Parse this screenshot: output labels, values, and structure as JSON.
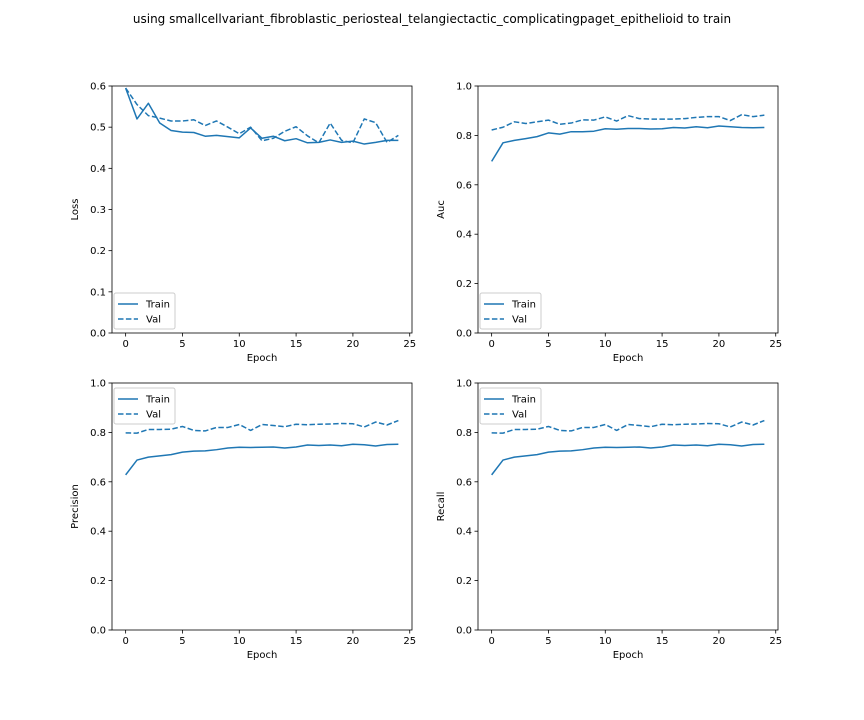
{
  "figure": {
    "title": "using smallcellvariant_fibroblastic_periosteal_telangiectactic_complicatingpaget_epithelioid to train"
  },
  "colors": {
    "series": "#1f77b4"
  },
  "chart_data": [
    {
      "type": "line",
      "ylabel": "Loss",
      "xlabel": "Epoch",
      "xlim": [
        -1.2,
        25.2
      ],
      "ylim": [
        0,
        0.6
      ],
      "xticks": [
        "0",
        "5",
        "10",
        "15",
        "20",
        "25"
      ],
      "yticks": [
        "0.0",
        "0.1",
        "0.2",
        "0.3",
        "0.4",
        "0.5",
        "0.6"
      ],
      "legend_position": "lower-left",
      "x": [
        0,
        1,
        2,
        3,
        4,
        5,
        6,
        7,
        8,
        9,
        10,
        11,
        12,
        13,
        14,
        15,
        16,
        17,
        18,
        19,
        20,
        21,
        22,
        23,
        24
      ],
      "series": [
        {
          "name": "Train",
          "style": "solid",
          "values": [
            0.595,
            0.52,
            0.558,
            0.51,
            0.492,
            0.488,
            0.487,
            0.478,
            0.48,
            0.477,
            0.474,
            0.498,
            0.473,
            0.478,
            0.467,
            0.472,
            0.462,
            0.463,
            0.469,
            0.463,
            0.466,
            0.459,
            0.463,
            0.468,
            0.468
          ]
        },
        {
          "name": "Val",
          "style": "dashed",
          "values": [
            0.595,
            0.555,
            0.528,
            0.522,
            0.515,
            0.515,
            0.518,
            0.504,
            0.515,
            0.5,
            0.484,
            0.5,
            0.467,
            0.473,
            0.49,
            0.501,
            0.479,
            0.462,
            0.51,
            0.468,
            0.462,
            0.52,
            0.511,
            0.463,
            0.48
          ]
        }
      ]
    },
    {
      "type": "line",
      "ylabel": "Auc",
      "xlabel": "Epoch",
      "xlim": [
        -1.2,
        25.2
      ],
      "ylim": [
        0,
        1.0
      ],
      "xticks": [
        "0",
        "5",
        "10",
        "15",
        "20",
        "25"
      ],
      "yticks": [
        "0.0",
        "0.2",
        "0.4",
        "0.6",
        "0.8",
        "1.0"
      ],
      "legend_position": "lower-left",
      "x": [
        0,
        1,
        2,
        3,
        4,
        5,
        6,
        7,
        8,
        9,
        10,
        11,
        12,
        13,
        14,
        15,
        16,
        17,
        18,
        19,
        20,
        21,
        22,
        23,
        24
      ],
      "series": [
        {
          "name": "Train",
          "style": "solid",
          "values": [
            0.695,
            0.77,
            0.78,
            0.787,
            0.795,
            0.81,
            0.805,
            0.815,
            0.815,
            0.817,
            0.827,
            0.825,
            0.828,
            0.828,
            0.826,
            0.827,
            0.832,
            0.83,
            0.835,
            0.831,
            0.838,
            0.835,
            0.832,
            0.831,
            0.832
          ]
        },
        {
          "name": "Val",
          "style": "dashed",
          "values": [
            0.822,
            0.833,
            0.855,
            0.848,
            0.855,
            0.862,
            0.845,
            0.85,
            0.863,
            0.862,
            0.875,
            0.858,
            0.88,
            0.868,
            0.866,
            0.866,
            0.866,
            0.868,
            0.873,
            0.876,
            0.876,
            0.86,
            0.884,
            0.876,
            0.882
          ]
        }
      ]
    },
    {
      "type": "line",
      "ylabel": "Precision",
      "xlabel": "Epoch",
      "xlim": [
        -1.2,
        25.2
      ],
      "ylim": [
        0,
        1.0
      ],
      "xticks": [
        "0",
        "5",
        "10",
        "15",
        "20",
        "25"
      ],
      "yticks": [
        "0.0",
        "0.2",
        "0.4",
        "0.6",
        "0.8",
        "1.0"
      ],
      "legend_position": "upper-left",
      "x": [
        0,
        1,
        2,
        3,
        4,
        5,
        6,
        7,
        8,
        9,
        10,
        11,
        12,
        13,
        14,
        15,
        16,
        17,
        18,
        19,
        20,
        21,
        22,
        23,
        24
      ],
      "series": [
        {
          "name": "Train",
          "style": "solid",
          "values": [
            0.628,
            0.688,
            0.7,
            0.705,
            0.71,
            0.72,
            0.724,
            0.725,
            0.73,
            0.737,
            0.74,
            0.739,
            0.74,
            0.741,
            0.737,
            0.741,
            0.749,
            0.747,
            0.749,
            0.746,
            0.752,
            0.75,
            0.745,
            0.751,
            0.752
          ]
        },
        {
          "name": "Val",
          "style": "dashed",
          "values": [
            0.798,
            0.797,
            0.812,
            0.812,
            0.813,
            0.824,
            0.808,
            0.806,
            0.82,
            0.82,
            0.832,
            0.808,
            0.832,
            0.828,
            0.823,
            0.833,
            0.831,
            0.833,
            0.834,
            0.836,
            0.835,
            0.822,
            0.842,
            0.83,
            0.848
          ]
        }
      ]
    },
    {
      "type": "line",
      "ylabel": "Recall",
      "xlabel": "Epoch",
      "xlim": [
        -1.2,
        25.2
      ],
      "ylim": [
        0,
        1.0
      ],
      "xticks": [
        "0",
        "5",
        "10",
        "15",
        "20",
        "25"
      ],
      "yticks": [
        "0.0",
        "0.2",
        "0.4",
        "0.6",
        "0.8",
        "1.0"
      ],
      "legend_position": "upper-left",
      "x": [
        0,
        1,
        2,
        3,
        4,
        5,
        6,
        7,
        8,
        9,
        10,
        11,
        12,
        13,
        14,
        15,
        16,
        17,
        18,
        19,
        20,
        21,
        22,
        23,
        24
      ],
      "series": [
        {
          "name": "Train",
          "style": "solid",
          "values": [
            0.628,
            0.688,
            0.7,
            0.705,
            0.71,
            0.72,
            0.724,
            0.725,
            0.73,
            0.737,
            0.74,
            0.739,
            0.74,
            0.741,
            0.737,
            0.741,
            0.749,
            0.747,
            0.749,
            0.746,
            0.752,
            0.75,
            0.745,
            0.751,
            0.752
          ]
        },
        {
          "name": "Val",
          "style": "dashed",
          "values": [
            0.798,
            0.797,
            0.812,
            0.812,
            0.813,
            0.824,
            0.808,
            0.806,
            0.82,
            0.82,
            0.832,
            0.808,
            0.832,
            0.828,
            0.823,
            0.833,
            0.831,
            0.833,
            0.834,
            0.836,
            0.835,
            0.822,
            0.842,
            0.83,
            0.848
          ]
        }
      ]
    }
  ]
}
